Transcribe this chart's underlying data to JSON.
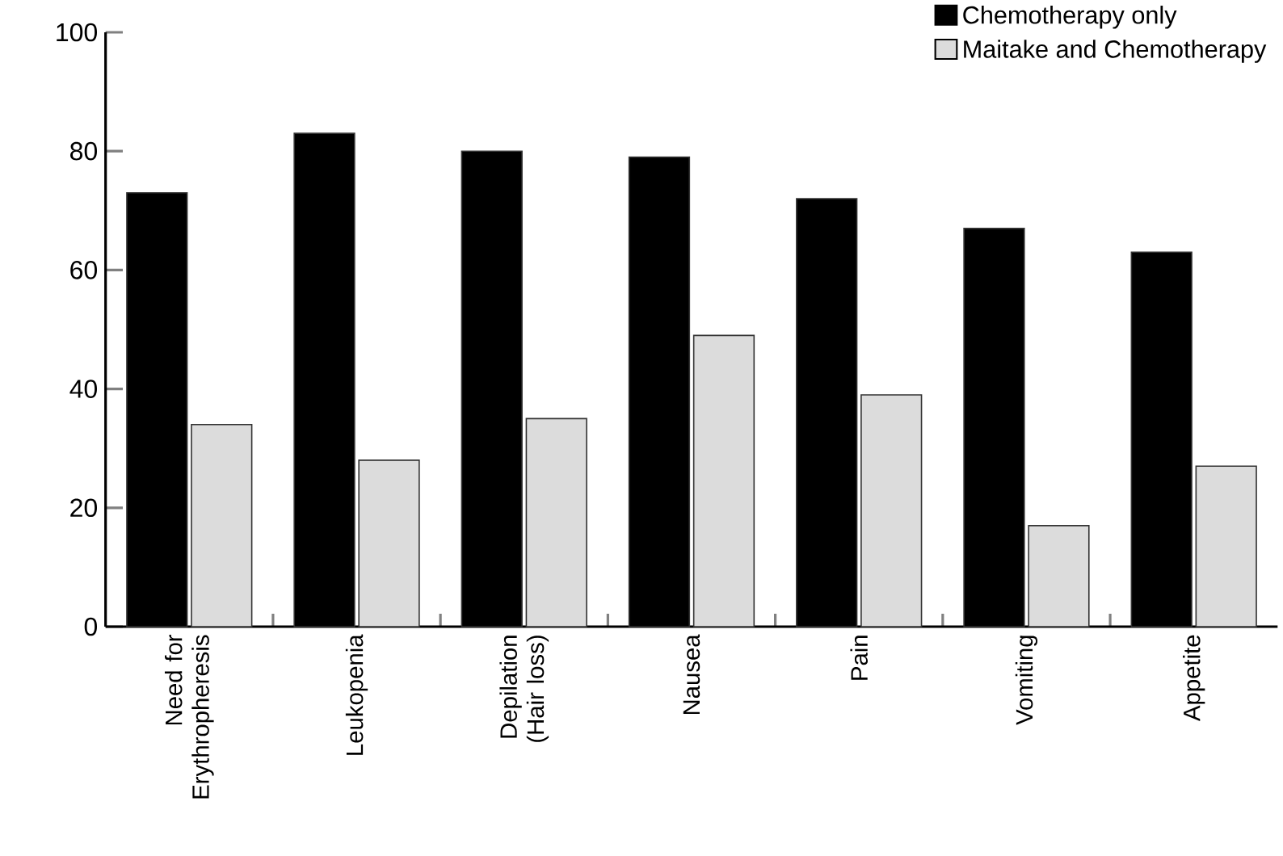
{
  "chart_data": {
    "type": "bar",
    "categories": [
      "Need for Erythropheresis",
      "Leukopenia",
      "Depilation (Hair loss)",
      "Nausea",
      "Pain",
      "Vomiting",
      "Appetite"
    ],
    "series": [
      {
        "name": "Chemotherapy only",
        "color": "#000000",
        "values": [
          73,
          83,
          80,
          79,
          72,
          67,
          63
        ]
      },
      {
        "name": "Maitake and Chemotherapy",
        "color": "#dcdcdc",
        "values": [
          34,
          28,
          35,
          49,
          39,
          17,
          27
        ]
      }
    ],
    "ylim": [
      0,
      100
    ],
    "yticks": [
      0,
      20,
      40,
      60,
      80,
      100
    ],
    "grid": false,
    "legend": "top right"
  }
}
